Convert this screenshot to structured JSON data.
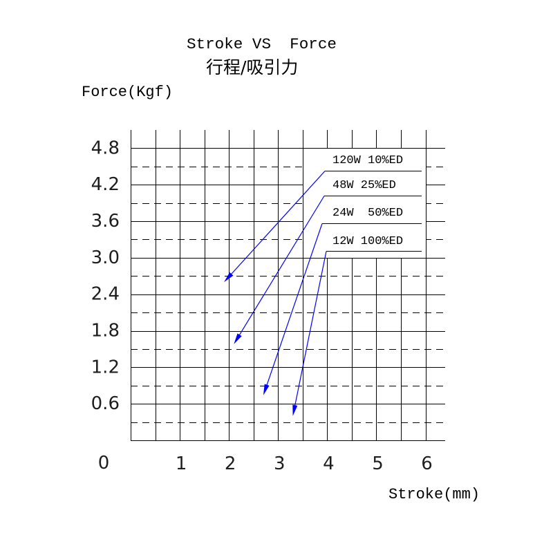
{
  "chart_data": {
    "type": "line",
    "title": "Stroke VS  Force",
    "subtitle": "行程/吸引力",
    "xlabel": "Stroke(mm)",
    "ylabel": "Force(Kgf)",
    "origin_label": "0",
    "xlim": [
      0,
      6.4
    ],
    "ylim": [
      0,
      5.1
    ],
    "x_ticks": [
      {
        "value": 1,
        "label": "1"
      },
      {
        "value": 2,
        "label": "2"
      },
      {
        "value": 3,
        "label": "3"
      },
      {
        "value": 4,
        "label": "4"
      },
      {
        "value": 5,
        "label": "5"
      },
      {
        "value": 6,
        "label": "6"
      }
    ],
    "y_ticks": [
      {
        "value": 0.6,
        "label": "0.6"
      },
      {
        "value": 1.2,
        "label": "1.2"
      },
      {
        "value": 1.8,
        "label": "1.8"
      },
      {
        "value": 2.4,
        "label": "2.4"
      },
      {
        "value": 3.0,
        "label": "3.0"
      },
      {
        "value": 3.6,
        "label": "3.6"
      },
      {
        "value": 4.2,
        "label": "4.2"
      },
      {
        "value": 4.8,
        "label": "4.8"
      }
    ],
    "grid": true,
    "x_grid_step": 0.5,
    "y_grid_step": 0.3,
    "legend_position": "top-right",
    "series": [
      {
        "name": "120W 10%ED",
        "color": "#0000ff",
        "arrow_target": {
          "x": 1.9,
          "y": 2.6
        }
      },
      {
        "name": "48W 25%ED",
        "color": "#0000ff",
        "arrow_target": {
          "x": 2.1,
          "y": 1.58
        }
      },
      {
        "name": "24W  50%ED",
        "color": "#0000ff",
        "arrow_target": {
          "x": 2.7,
          "y": 0.74
        }
      },
      {
        "name": "12W 100%ED",
        "color": "#0000ff",
        "arrow_target": {
          "x": 3.3,
          "y": 0.4
        }
      }
    ],
    "colors": {
      "grid": "#000000",
      "background": "#ffffff"
    }
  }
}
